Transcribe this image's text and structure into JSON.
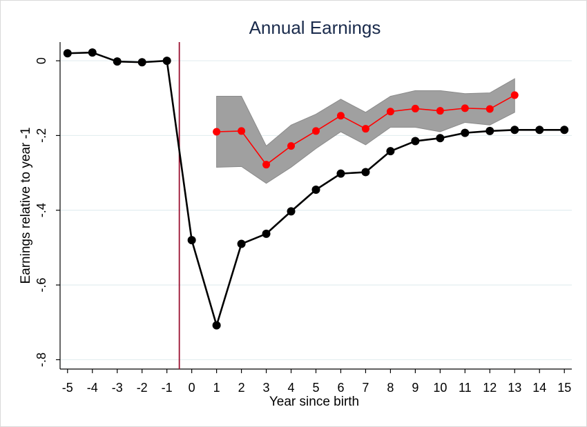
{
  "chart_data": {
    "type": "line",
    "title": "Annual Earnings",
    "xlabel": "Year since birth",
    "ylabel": "Earnings relative to year -1",
    "x_ticks": [
      -5,
      -4,
      -3,
      -2,
      -1,
      0,
      1,
      2,
      3,
      4,
      5,
      6,
      7,
      8,
      9,
      10,
      11,
      12,
      13,
      14,
      15
    ],
    "x_tick_labels": [
      "-5",
      "-4",
      "-3",
      "-2",
      "-1",
      "0",
      "1",
      "2",
      "3",
      "4",
      "5",
      "6",
      "7",
      "8",
      "9",
      "10",
      "11",
      "12",
      "13",
      "14",
      "15"
    ],
    "y_ticks": [
      0,
      -0.2,
      -0.4,
      -0.6,
      -0.8
    ],
    "y_tick_labels": [
      "0",
      "-.2",
      "-.4",
      "-.6",
      "-.8"
    ],
    "xlim": [
      -5.3,
      15.3
    ],
    "ylim": [
      -0.825,
      0.05
    ],
    "grid": true,
    "event_line_x": -0.5,
    "series": [
      {
        "color": "#000000",
        "x": [
          -5,
          -4,
          -3,
          -2,
          -1,
          0,
          1,
          2,
          3,
          4,
          5,
          6,
          7,
          8,
          9,
          10,
          11,
          12,
          13,
          14,
          15
        ],
        "y": [
          0.02,
          0.022,
          -0.002,
          -0.004,
          0.0,
          -0.48,
          -0.708,
          -0.49,
          -0.463,
          -0.403,
          -0.345,
          -0.302,
          -0.298,
          -0.242,
          -0.215,
          -0.207,
          -0.193,
          -0.188,
          -0.185,
          -0.185,
          -0.185
        ]
      },
      {
        "color": "#ff0000",
        "x": [
          1,
          2,
          3,
          4,
          5,
          6,
          7,
          8,
          9,
          10,
          11,
          12,
          13
        ],
        "y": [
          -0.19,
          -0.188,
          -0.278,
          -0.228,
          -0.188,
          -0.147,
          -0.182,
          -0.136,
          -0.128,
          -0.134,
          -0.127,
          -0.129,
          -0.092
        ],
        "ci_lower": [
          -0.285,
          -0.283,
          -0.328,
          -0.285,
          -0.235,
          -0.19,
          -0.225,
          -0.178,
          -0.178,
          -0.19,
          -0.165,
          -0.172,
          -0.138
        ],
        "ci_upper": [
          -0.095,
          -0.095,
          -0.228,
          -0.172,
          -0.143,
          -0.103,
          -0.138,
          -0.095,
          -0.08,
          -0.08,
          -0.088,
          -0.086,
          -0.048
        ],
        "ci_color": "#a0a0a0"
      }
    ]
  }
}
